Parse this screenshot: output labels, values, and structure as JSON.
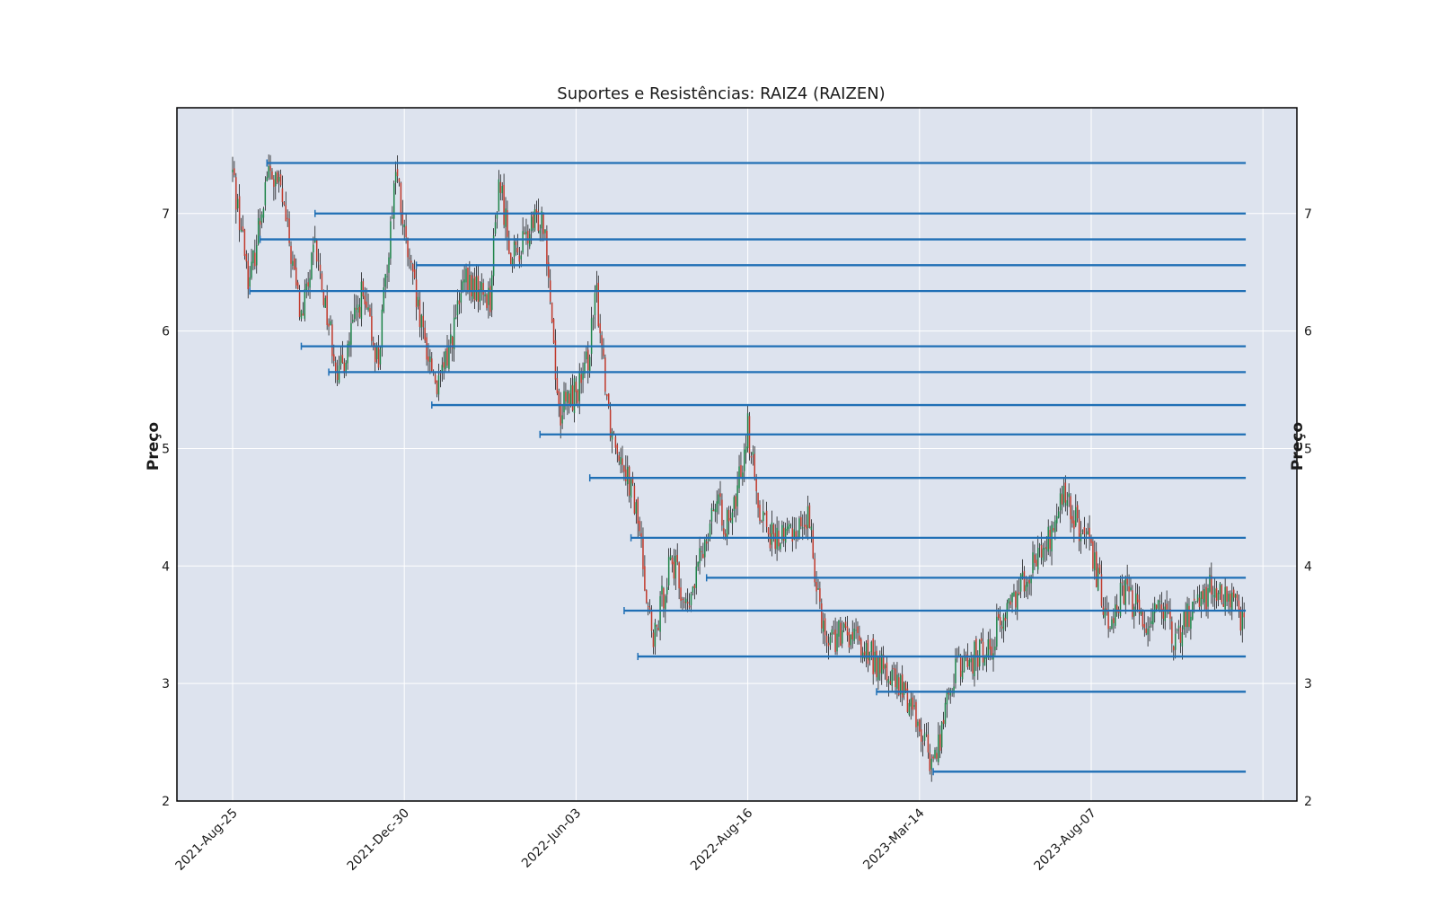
{
  "chart_data": {
    "type": "candlestick",
    "title": "Suportes e Resistências: RAIZ4 (RAIZEN)",
    "ylabel_left": "Preço",
    "ylabel_right": "Preço",
    "ylim": [
      2,
      7.9
    ],
    "y_ticks": [
      2,
      3,
      4,
      5,
      6,
      7
    ],
    "x_tick_labels": [
      "2021-Aug-25",
      "2021-Dec-30",
      "2022-Jun-03",
      "2022-Aug-16",
      "2023-Mar-14",
      "2023-Aug-07"
    ],
    "x_tick_index": [
      0,
      100,
      200,
      300,
      400,
      500
    ],
    "bar_count": 590,
    "grid": true,
    "colors": {
      "background": "#dde3ee",
      "grid": "#ffffff",
      "up_candle": "#1e8449",
      "down_candle": "#c0392b",
      "wick": "#000000",
      "level_line": "#1f6fb5",
      "frame": "#000000"
    },
    "price_path": [
      [
        0,
        7.35
      ],
      [
        10,
        6.4
      ],
      [
        20,
        7.35
      ],
      [
        28,
        7.2
      ],
      [
        40,
        6.1
      ],
      [
        48,
        6.7
      ],
      [
        62,
        5.6
      ],
      [
        75,
        6.3
      ],
      [
        85,
        5.75
      ],
      [
        95,
        7.4
      ],
      [
        100,
        6.8
      ],
      [
        110,
        6.0
      ],
      [
        120,
        5.5
      ],
      [
        135,
        6.4
      ],
      [
        150,
        6.3
      ],
      [
        155,
        7.3
      ],
      [
        163,
        6.6
      ],
      [
        180,
        7.0
      ],
      [
        182,
        6.9
      ],
      [
        190,
        5.3
      ],
      [
        205,
        5.6
      ],
      [
        212,
        6.3
      ],
      [
        220,
        5.2
      ],
      [
        228,
        4.9
      ],
      [
        236,
        4.4
      ],
      [
        245,
        3.3
      ],
      [
        255,
        4.1
      ],
      [
        265,
        3.6
      ],
      [
        280,
        4.55
      ],
      [
        290,
        4.3
      ],
      [
        300,
        5.2
      ],
      [
        305,
        4.6
      ],
      [
        315,
        4.2
      ],
      [
        325,
        4.3
      ],
      [
        335,
        4.4
      ],
      [
        345,
        3.4
      ],
      [
        360,
        3.4
      ],
      [
        380,
        3.1
      ],
      [
        395,
        2.85
      ],
      [
        408,
        2.3
      ],
      [
        420,
        3.1
      ],
      [
        440,
        3.3
      ],
      [
        460,
        3.9
      ],
      [
        475,
        4.2
      ],
      [
        484,
        4.6
      ],
      [
        500,
        4.1
      ],
      [
        510,
        3.55
      ],
      [
        520,
        3.8
      ],
      [
        532,
        3.5
      ],
      [
        540,
        3.75
      ],
      [
        548,
        3.3
      ],
      [
        560,
        3.7
      ],
      [
        570,
        3.8
      ],
      [
        590,
        3.55
      ]
    ],
    "levels": [
      {
        "price": 7.43,
        "start_index": 20
      },
      {
        "price": 7.0,
        "start_index": 48
      },
      {
        "price": 6.78,
        "start_index": 16
      },
      {
        "price": 6.56,
        "start_index": 107
      },
      {
        "price": 6.34,
        "start_index": 10
      },
      {
        "price": 5.87,
        "start_index": 40
      },
      {
        "price": 5.65,
        "start_index": 56
      },
      {
        "price": 5.37,
        "start_index": 116
      },
      {
        "price": 5.12,
        "start_index": 179
      },
      {
        "price": 4.75,
        "start_index": 208
      },
      {
        "price": 4.24,
        "start_index": 232
      },
      {
        "price": 3.9,
        "start_index": 276
      },
      {
        "price": 3.62,
        "start_index": 228
      },
      {
        "price": 3.23,
        "start_index": 236
      },
      {
        "price": 2.93,
        "start_index": 375
      },
      {
        "price": 2.25,
        "start_index": 408
      }
    ]
  }
}
